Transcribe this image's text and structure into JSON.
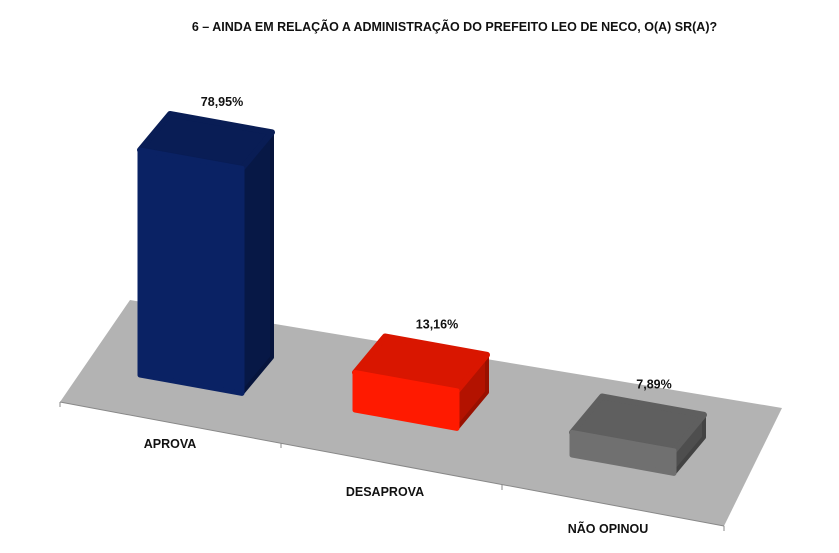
{
  "chart_data": {
    "type": "bar",
    "style": "3d",
    "title": "6 –  AINDA EM RELAÇÃO A ADMINISTRAÇÃO DO PREFEITO LEO DE NECO, O(A) SR(A)?",
    "categories": [
      "APROVA",
      "DESAPROVA",
      "NÃO OPINOU"
    ],
    "values": [
      78.95,
      13.16,
      7.89
    ],
    "data_labels": [
      "78,95%",
      "13,16%",
      "7,89%"
    ],
    "colors": [
      "#0a2264",
      "#ff1a00",
      "#707070"
    ],
    "floor_color": "#b3b3b3",
    "grid": false,
    "legend": "none",
    "unit": "%"
  }
}
